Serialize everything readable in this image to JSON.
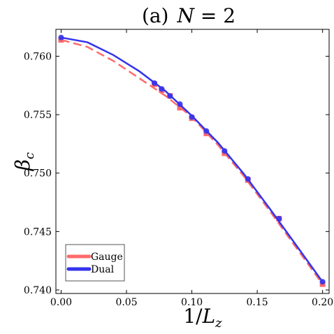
{
  "chart_data": {
    "type": "line",
    "title_prefix": "(a)",
    "title_var": "N",
    "title_rest": " = 2",
    "xlabel_prefix": "1/",
    "xlabel_var": "L",
    "xlabel_sub": "z",
    "ylabel_var": "β",
    "ylabel_sub": "c",
    "xlim": [
      -0.004,
      0.205
    ],
    "ylim": [
      0.7397,
      0.7623
    ],
    "xticks": [
      0.0,
      0.05,
      0.1,
      0.15,
      0.2
    ],
    "xtick_labels": [
      "0.00",
      "0.05",
      "0.10",
      "0.15",
      "0.20"
    ],
    "yticks": [
      0.74,
      0.745,
      0.75,
      0.755,
      0.76
    ],
    "ytick_labels": [
      "0.740",
      "0.745",
      "0.750",
      "0.755",
      "0.760"
    ],
    "grid": false,
    "legend_position": "bottom-left",
    "series": [
      {
        "name": "Gauge",
        "color": "#ff6b6b",
        "marker": "square",
        "style": "dashed",
        "x": [
          0.0,
          0.0714,
          0.0769,
          0.0833,
          0.0909,
          0.1,
          0.1111,
          0.125,
          0.1429,
          0.1667,
          0.2
        ],
        "y": [
          0.7614,
          0.7576,
          0.7571,
          0.7566,
          0.7556,
          0.7547,
          0.7534,
          0.7517,
          0.7494,
          0.7461,
          0.7405
        ],
        "fit_x": [
          0.0,
          0.02,
          0.04,
          0.06,
          0.08,
          0.1,
          0.12,
          0.14,
          0.16,
          0.18,
          0.2
        ],
        "fit_y": [
          0.7614,
          0.7608,
          0.7596,
          0.7581,
          0.7566,
          0.7548,
          0.7524,
          0.7497,
          0.7467,
          0.7436,
          0.7405
        ]
      },
      {
        "name": "Dual",
        "color": "#3333ee",
        "marker": "circle",
        "style": "solid",
        "x": [
          0.0,
          0.0714,
          0.0769,
          0.0833,
          0.0909,
          0.1,
          0.1111,
          0.125,
          0.1429,
          0.1667,
          0.2
        ],
        "y": [
          0.7616,
          0.7577,
          0.7572,
          0.7566,
          0.7559,
          0.7548,
          0.7536,
          0.7519,
          0.7495,
          0.7461,
          0.7407
        ],
        "fit_x": [
          0.0,
          0.02,
          0.04,
          0.06,
          0.08,
          0.1,
          0.12,
          0.14,
          0.16,
          0.18,
          0.2
        ],
        "fit_y": [
          0.7616,
          0.7612,
          0.7601,
          0.7587,
          0.757,
          0.7549,
          0.7526,
          0.7499,
          0.7469,
          0.7438,
          0.7407
        ]
      }
    ]
  }
}
